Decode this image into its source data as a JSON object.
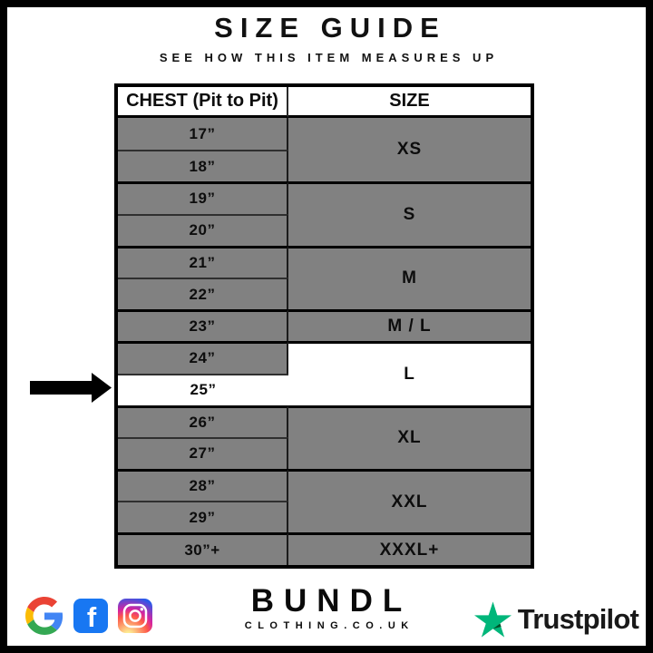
{
  "header": {
    "title": "SIZE GUIDE",
    "subtitle": "SEE HOW THIS ITEM MEASURES UP"
  },
  "table": {
    "columns": [
      "CHEST (Pit to Pit)",
      "SIZE"
    ],
    "groups": [
      {
        "size": "XS",
        "rows": [
          "17”",
          "18”"
        ]
      },
      {
        "size": "S",
        "rows": [
          "19”",
          "20”"
        ]
      },
      {
        "size": "M",
        "rows": [
          "21”",
          "22”"
        ]
      },
      {
        "size": "M / L",
        "rows": [
          "23”"
        ]
      },
      {
        "size": "L",
        "rows": [
          "24”",
          "25”"
        ],
        "highlight_size": true,
        "highlight_rows": [
          "25”"
        ]
      },
      {
        "size": "XL",
        "rows": [
          "26”",
          "27”"
        ]
      },
      {
        "size": "XXL",
        "rows": [
          "28”",
          "29”"
        ]
      },
      {
        "size": "XXXL+",
        "rows": [
          "30”+"
        ]
      }
    ],
    "highlight": {
      "chest_value": "25”",
      "size": "L"
    }
  },
  "annotation": {
    "arrow_points_to": "25”"
  },
  "footer": {
    "brand": {
      "name": "BUNDL",
      "domain": "CLOTHING.CO.UK"
    },
    "icons": [
      "google-logo",
      "facebook-logo",
      "instagram-logo"
    ],
    "trustpilot_label": "Trustpilot"
  },
  "colors": {
    "table-gray": "#818181",
    "facebook-blue": "#1877f2",
    "trustpilot-green": "#00b67a",
    "trustpilot-dark": "#005128",
    "google-blue": "#4285F4",
    "google-red": "#EA4335",
    "google-yellow": "#FBBC05",
    "google-green": "#34A853"
  }
}
